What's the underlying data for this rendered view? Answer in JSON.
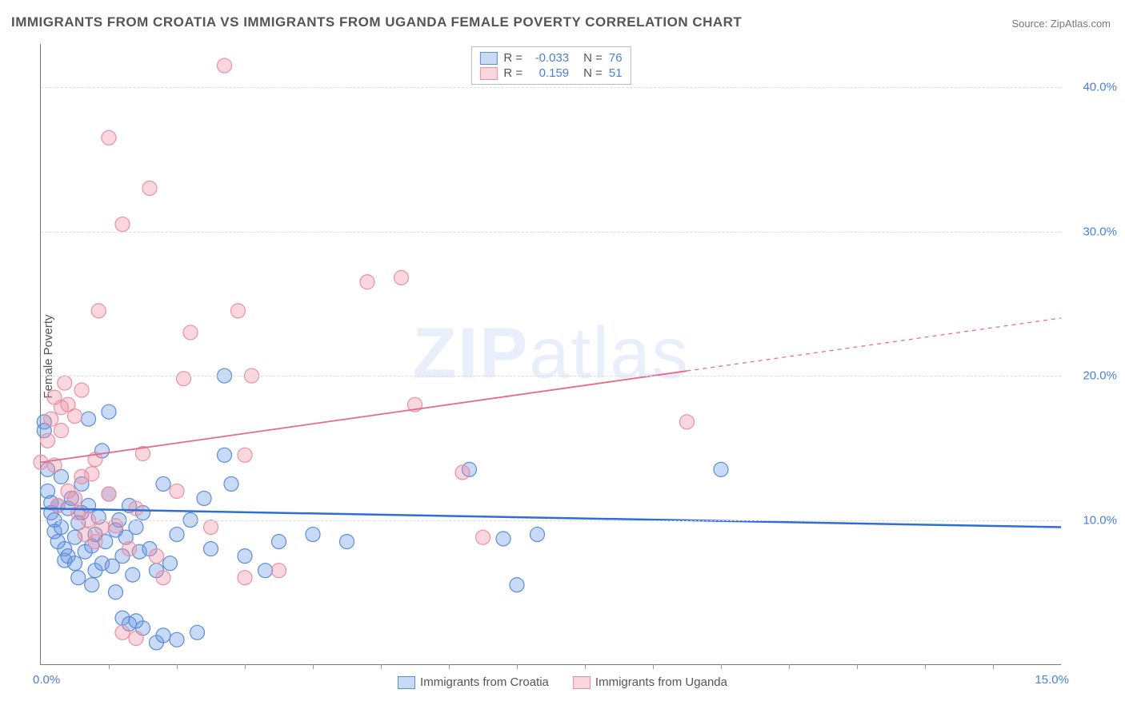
{
  "title": "IMMIGRANTS FROM CROATIA VS IMMIGRANTS FROM UGANDA FEMALE POVERTY CORRELATION CHART",
  "source": "Source: ZipAtlas.com",
  "ylabel": "Female Poverty",
  "watermark_bold": "ZIP",
  "watermark_light": "atlas",
  "xlim": [
    0,
    15
  ],
  "ylim": [
    0,
    43
  ],
  "ytick_labels": [
    "10.0%",
    "20.0%",
    "30.0%",
    "40.0%"
  ],
  "ytick_values": [
    10,
    20,
    30,
    40
  ],
  "x_left_label": "0.0%",
  "x_right_label": "15.0%",
  "x_minor_ticks": [
    1,
    2,
    3,
    4,
    5,
    6,
    7,
    8,
    9,
    10,
    11,
    12,
    13,
    14
  ],
  "series": [
    {
      "name": "Immigrants from Croatia",
      "color_fill": "rgba(100, 150, 230, 0.35)",
      "color_stroke": "#5b8dd6",
      "line_color": "#2e6fd6",
      "line_width": 2.5,
      "R": "-0.033",
      "N": "76",
      "trend": {
        "x1": 0,
        "y1": 10.8,
        "x2": 15,
        "y2": 9.5
      },
      "marker_radius": 9,
      "points": [
        [
          0.05,
          16.8
        ],
        [
          0.05,
          16.2
        ],
        [
          0.1,
          13.5
        ],
        [
          0.1,
          12.0
        ],
        [
          0.15,
          11.2
        ],
        [
          0.15,
          10.5
        ],
        [
          0.2,
          10.0
        ],
        [
          0.2,
          9.2
        ],
        [
          0.25,
          11.0
        ],
        [
          0.25,
          8.5
        ],
        [
          0.3,
          13.0
        ],
        [
          0.3,
          9.5
        ],
        [
          0.35,
          8.0
        ],
        [
          0.35,
          7.2
        ],
        [
          0.4,
          10.8
        ],
        [
          0.4,
          7.5
        ],
        [
          0.45,
          11.5
        ],
        [
          0.5,
          8.8
        ],
        [
          0.5,
          7.0
        ],
        [
          0.55,
          9.8
        ],
        [
          0.55,
          6.0
        ],
        [
          0.6,
          10.5
        ],
        [
          0.6,
          12.5
        ],
        [
          0.65,
          7.8
        ],
        [
          0.7,
          11.0
        ],
        [
          0.7,
          17.0
        ],
        [
          0.75,
          8.2
        ],
        [
          0.75,
          5.5
        ],
        [
          0.8,
          9.0
        ],
        [
          0.8,
          6.5
        ],
        [
          0.85,
          10.2
        ],
        [
          0.9,
          7.0
        ],
        [
          0.9,
          14.8
        ],
        [
          0.95,
          8.5
        ],
        [
          1.0,
          11.8
        ],
        [
          1.0,
          17.5
        ],
        [
          1.05,
          6.8
        ],
        [
          1.1,
          9.3
        ],
        [
          1.1,
          5.0
        ],
        [
          1.15,
          10.0
        ],
        [
          1.2,
          7.5
        ],
        [
          1.2,
          3.2
        ],
        [
          1.25,
          8.8
        ],
        [
          1.3,
          11.0
        ],
        [
          1.3,
          2.8
        ],
        [
          1.35,
          6.2
        ],
        [
          1.4,
          9.5
        ],
        [
          1.4,
          3.0
        ],
        [
          1.45,
          7.8
        ],
        [
          1.5,
          10.5
        ],
        [
          1.5,
          2.5
        ],
        [
          1.6,
          8.0
        ],
        [
          1.7,
          6.5
        ],
        [
          1.7,
          1.5
        ],
        [
          1.8,
          12.5
        ],
        [
          1.8,
          2.0
        ],
        [
          1.9,
          7.0
        ],
        [
          2.0,
          9.0
        ],
        [
          2.0,
          1.7
        ],
        [
          2.2,
          10.0
        ],
        [
          2.3,
          2.2
        ],
        [
          2.4,
          11.5
        ],
        [
          2.5,
          8.0
        ],
        [
          2.7,
          14.5
        ],
        [
          2.7,
          20.0
        ],
        [
          2.8,
          12.5
        ],
        [
          3.0,
          7.5
        ],
        [
          3.3,
          6.5
        ],
        [
          3.5,
          8.5
        ],
        [
          4.0,
          9.0
        ],
        [
          4.5,
          8.5
        ],
        [
          6.3,
          13.5
        ],
        [
          7.0,
          5.5
        ],
        [
          7.3,
          9.0
        ],
        [
          10.0,
          13.5
        ],
        [
          6.8,
          8.7
        ]
      ]
    },
    {
      "name": "Immigrants from Uganda",
      "color_fill": "rgba(240, 140, 160, 0.35)",
      "color_stroke": "#e890a5",
      "line_color": "#e86a8a",
      "line_width": 1.8,
      "R": "0.159",
      "N": "51",
      "trend": {
        "x1": 0,
        "y1": 14.0,
        "x2": 15,
        "y2": 24.0
      },
      "trend_solid_until_x": 9.5,
      "marker_radius": 9,
      "points": [
        [
          0.0,
          14.0
        ],
        [
          0.1,
          15.5
        ],
        [
          0.15,
          17.0
        ],
        [
          0.2,
          13.8
        ],
        [
          0.2,
          18.5
        ],
        [
          0.25,
          11.0
        ],
        [
          0.3,
          16.2
        ],
        [
          0.3,
          17.8
        ],
        [
          0.35,
          19.5
        ],
        [
          0.4,
          12.0
        ],
        [
          0.4,
          18.0
        ],
        [
          0.5,
          17.2
        ],
        [
          0.5,
          11.5
        ],
        [
          0.55,
          10.5
        ],
        [
          0.6,
          13.0
        ],
        [
          0.6,
          19.0
        ],
        [
          0.65,
          9.0
        ],
        [
          0.7,
          10.0
        ],
        [
          0.75,
          13.2
        ],
        [
          0.8,
          14.2
        ],
        [
          0.8,
          8.5
        ],
        [
          0.85,
          24.5
        ],
        [
          0.9,
          9.5
        ],
        [
          1.0,
          11.8
        ],
        [
          1.0,
          36.5
        ],
        [
          1.1,
          9.6
        ],
        [
          1.2,
          30.5
        ],
        [
          1.3,
          8.0
        ],
        [
          1.4,
          10.8
        ],
        [
          1.4,
          1.8
        ],
        [
          1.5,
          14.6
        ],
        [
          1.6,
          33.0
        ],
        [
          1.7,
          7.5
        ],
        [
          1.8,
          6.0
        ],
        [
          2.0,
          12.0
        ],
        [
          2.1,
          19.8
        ],
        [
          2.2,
          23.0
        ],
        [
          2.5,
          9.5
        ],
        [
          2.7,
          41.5
        ],
        [
          2.9,
          24.5
        ],
        [
          3.0,
          6.0
        ],
        [
          3.0,
          14.5
        ],
        [
          3.1,
          20.0
        ],
        [
          3.5,
          6.5
        ],
        [
          4.8,
          26.5
        ],
        [
          5.3,
          26.8
        ],
        [
          5.5,
          18.0
        ],
        [
          6.2,
          13.3
        ],
        [
          6.5,
          8.8
        ],
        [
          9.5,
          16.8
        ],
        [
          1.2,
          2.2
        ]
      ]
    }
  ],
  "colors": {
    "title": "#555555",
    "axis_value": "#4a7fde",
    "grid": "#dddddd",
    "axis_line": "#777777",
    "background": "#ffffff"
  },
  "marker_stroke_width": 1.2
}
